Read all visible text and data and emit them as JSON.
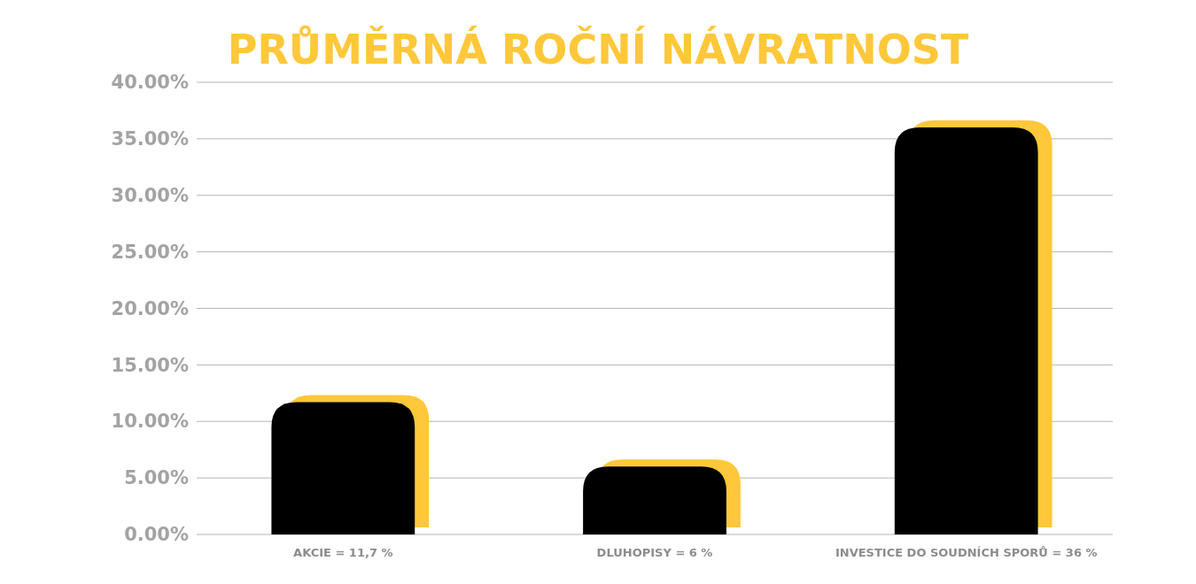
{
  "chart_data": {
    "type": "bar",
    "title": "PRŮMĚRNÁ ROČNÍ NÁVRATNOST",
    "categories": [
      "AKCIE = 11,7 %",
      "DLUHOPISY = 6 %",
      "INVESTICE DO SOUDNÍCH SPORŮ = 36 %"
    ],
    "values": [
      11.7,
      6,
      36
    ],
    "color": "#000000",
    "ylim": [
      0,
      40
    ],
    "yticks": [
      {
        "value": 0,
        "label": "0.00%"
      },
      {
        "value": 5,
        "label": "5.00%"
      },
      {
        "value": 10,
        "label": "10.00%"
      },
      {
        "value": 15,
        "label": "15.00%"
      },
      {
        "value": 20,
        "label": "20.00%"
      },
      {
        "value": 25,
        "label": "25.00%"
      },
      {
        "value": 30,
        "label": "30.00%"
      },
      {
        "value": 35,
        "label": "35.00%"
      },
      {
        "value": 40,
        "label": "40.00%"
      }
    ],
    "grid": "y"
  }
}
